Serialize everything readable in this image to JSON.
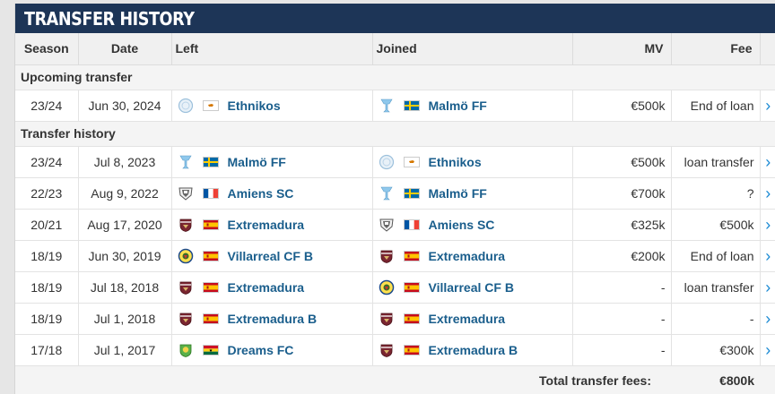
{
  "title": "Transfer history",
  "columns": {
    "season": "Season",
    "date": "Date",
    "left": "Left",
    "joined": "Joined",
    "mv": "MV",
    "fee": "Fee"
  },
  "sections": [
    {
      "label": "Upcoming transfer",
      "rows": [
        {
          "season": "23/24",
          "date": "Jun 30, 2024",
          "left": {
            "club": "Ethnikos",
            "crest": "ethnikos-crest",
            "flag": "cyprus"
          },
          "joined": {
            "club": "Malmö FF",
            "crest": "malmo-crest",
            "flag": "sweden"
          },
          "mv": "€500k",
          "fee": "End of loan"
        }
      ]
    },
    {
      "label": "Transfer history",
      "rows": [
        {
          "season": "23/24",
          "date": "Jul 8, 2023",
          "left": {
            "club": "Malmö FF",
            "crest": "malmo-crest",
            "flag": "sweden"
          },
          "joined": {
            "club": "Ethnikos",
            "crest": "ethnikos-crest",
            "flag": "cyprus"
          },
          "mv": "€500k",
          "fee": "loan transfer"
        },
        {
          "season": "22/23",
          "date": "Aug 9, 2022",
          "left": {
            "club": "Amiens SC",
            "crest": "amiens-crest",
            "flag": "france"
          },
          "joined": {
            "club": "Malmö FF",
            "crest": "malmo-crest",
            "flag": "sweden"
          },
          "mv": "€700k",
          "fee": "?"
        },
        {
          "season": "20/21",
          "date": "Aug 17, 2020",
          "left": {
            "club": "Extremadura",
            "crest": "extremadura-crest",
            "flag": "spain"
          },
          "joined": {
            "club": "Amiens SC",
            "crest": "amiens-crest",
            "flag": "france"
          },
          "mv": "€325k",
          "fee": "€500k"
        },
        {
          "season": "18/19",
          "date": "Jun 30, 2019",
          "left": {
            "club": "Villarreal CF B",
            "crest": "villarreal-crest",
            "flag": "spain"
          },
          "joined": {
            "club": "Extremadura",
            "crest": "extremadura-crest",
            "flag": "spain"
          },
          "mv": "€200k",
          "fee": "End of loan"
        },
        {
          "season": "18/19",
          "date": "Jul 18, 2018",
          "left": {
            "club": "Extremadura",
            "crest": "extremadura-crest",
            "flag": "spain"
          },
          "joined": {
            "club": "Villarreal CF B",
            "crest": "villarreal-crest",
            "flag": "spain"
          },
          "mv": "-",
          "fee": "loan transfer"
        },
        {
          "season": "18/19",
          "date": "Jul 1, 2018",
          "left": {
            "club": "Extremadura B",
            "crest": "extremadura-crest",
            "flag": "spain"
          },
          "joined": {
            "club": "Extremadura",
            "crest": "extremadura-crest",
            "flag": "spain"
          },
          "mv": "-",
          "fee": "-"
        },
        {
          "season": "17/18",
          "date": "Jul 1, 2017",
          "left": {
            "club": "Dreams FC",
            "crest": "dreams-crest",
            "flag": "ghana"
          },
          "joined": {
            "club": "Extremadura B",
            "crest": "extremadura-crest",
            "flag": "spain"
          },
          "mv": "-",
          "fee": "€300k"
        }
      ]
    }
  ],
  "footer": {
    "label": "Total transfer fees:",
    "value": "€800k"
  },
  "colors": {
    "header_bg": "#1d3557",
    "club_link": "#1a5e8c",
    "arrow": "#1a8ad4"
  }
}
